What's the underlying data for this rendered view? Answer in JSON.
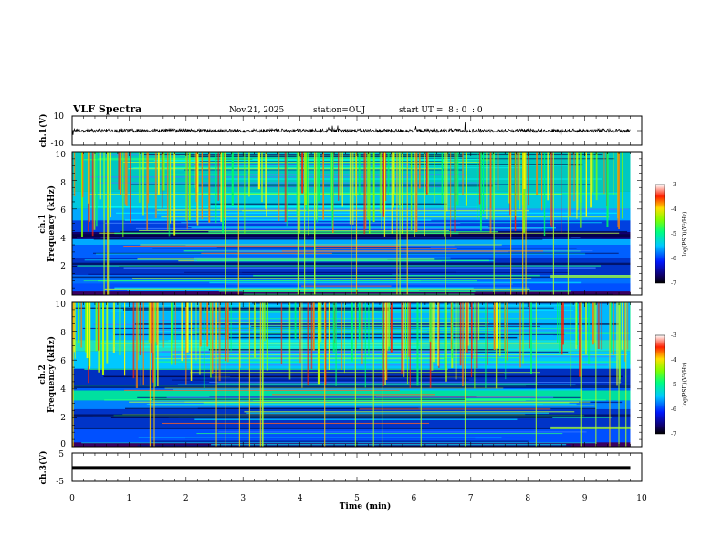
{
  "chart_data": [
    {
      "type": "line",
      "panel": "ch1-waveform",
      "title": "VLF Spectra",
      "date": "Nov.21, 2025",
      "station": "station=OUJ",
      "start_ut": "start UT =  8 : 0  : 0",
      "ylabel": "ch.1(V)",
      "ylim": [
        -10,
        10
      ],
      "yticks": [
        "10",
        "-10"
      ],
      "description_values": {
        "baseline": 0,
        "noise_amplitude": 1.2,
        "spike_max": 6
      }
    },
    {
      "type": "heatmap",
      "panel": "ch1-spectrogram",
      "ylabel": "Frequency (kHz)",
      "channel_label": "ch.1",
      "ylim": [
        0,
        10
      ],
      "yticks": [
        "0",
        "2",
        "4",
        "6",
        "8",
        "10"
      ],
      "colorbar": {
        "label": "log(PSD)(V²/Hz)",
        "range": [
          -7,
          -3
        ],
        "ticks": [
          "-3",
          "-4",
          "-5",
          "-6",
          "-7"
        ]
      }
    },
    {
      "type": "heatmap",
      "panel": "ch2-spectrogram",
      "ylabel": "Frequency (kHz)",
      "channel_label": "ch.2",
      "ylim": [
        0,
        10
      ],
      "yticks": [
        "0",
        "2",
        "4",
        "6",
        "8",
        "10"
      ],
      "colorbar": {
        "label": "log(PSD)(V²/Hz)",
        "range": [
          -7,
          -3
        ],
        "ticks": [
          "-3",
          "-4",
          "-5",
          "-6",
          "-7"
        ]
      }
    },
    {
      "type": "line",
      "panel": "ch3-waveform",
      "ylabel": "ch.3(V)",
      "ylim": [
        -5,
        5
      ],
      "yticks": [
        "5",
        "-5"
      ],
      "series": [
        {
          "name": "ch.3",
          "x": [
            0,
            9.8
          ],
          "y": [
            -0.3,
            -0.3
          ]
        }
      ]
    }
  ],
  "xaxis": {
    "label": "Time (min)",
    "range": [
      0,
      10
    ],
    "ticks": [
      "0",
      "1",
      "2",
      "3",
      "4",
      "5",
      "6",
      "7",
      "8",
      "9",
      "10"
    ],
    "data_end": 9.8
  },
  "colors": {
    "axis": "#000000",
    "background": "#ffffff",
    "trace": "#000000"
  }
}
